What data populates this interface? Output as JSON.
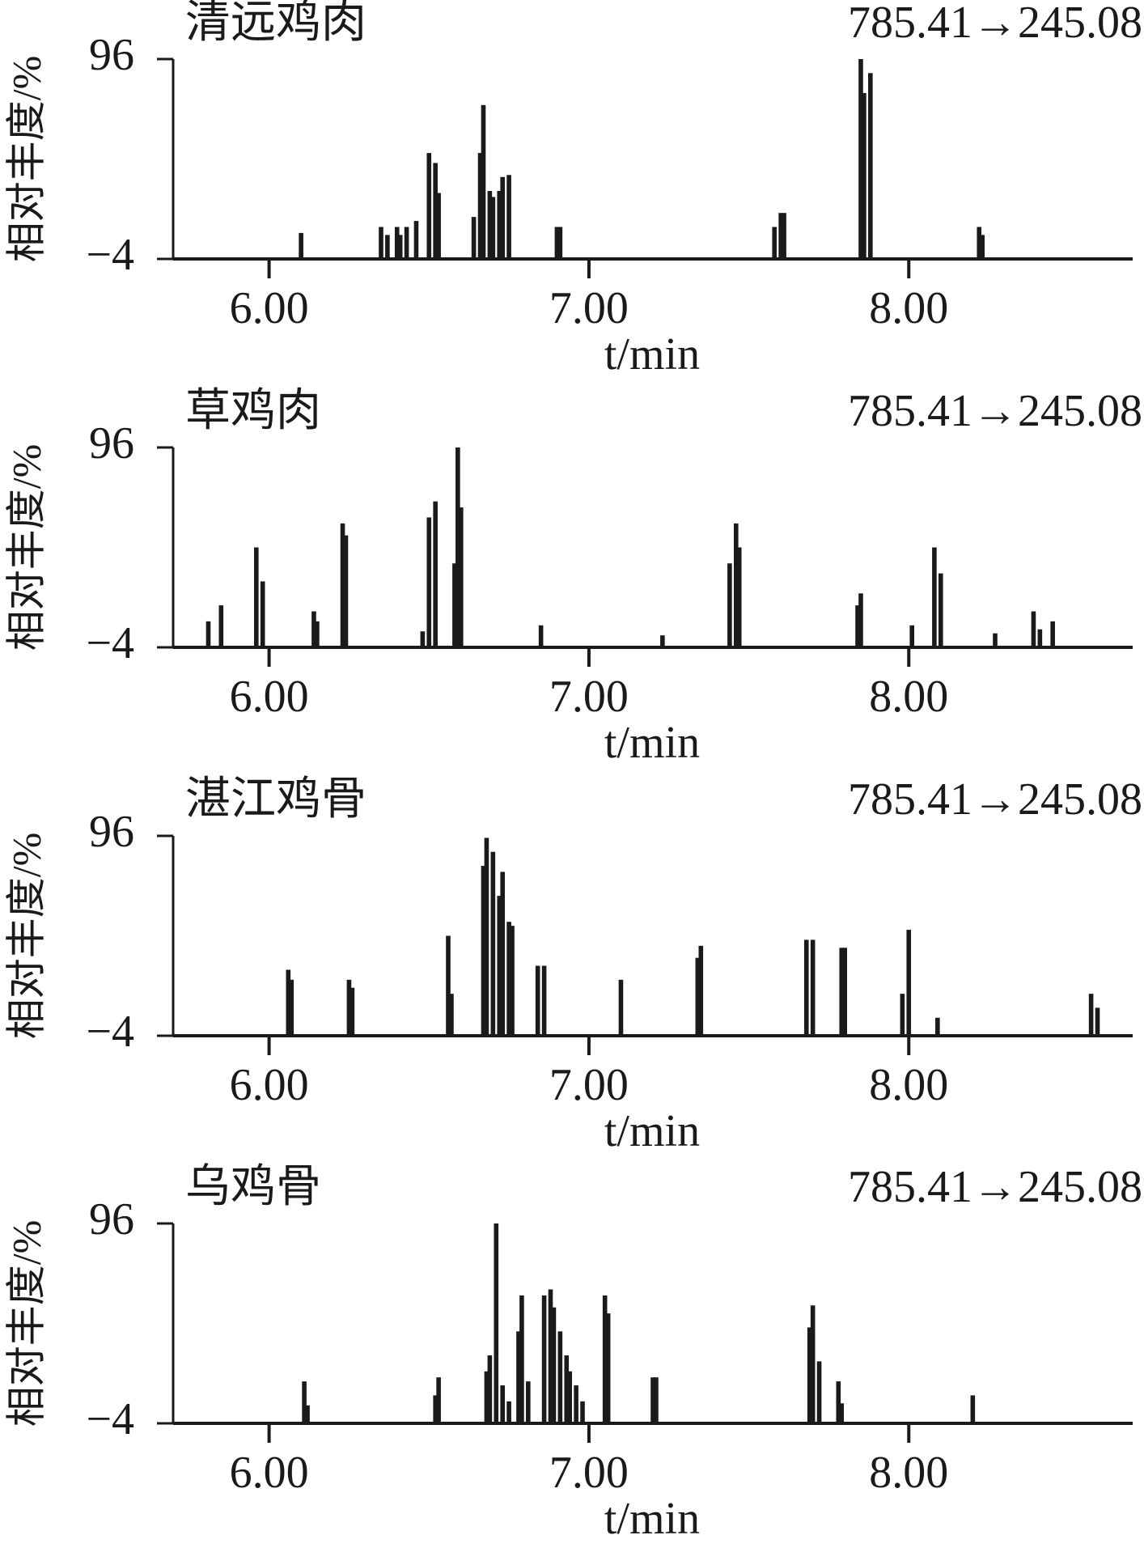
{
  "chart_data": [
    {
      "type": "bar",
      "title": "清远鸡肉",
      "annotation": "785.41→245.08",
      "ylabel": "相对丰度/%",
      "xlabel": "t/min",
      "color": "#1a1a1a",
      "xlim": [
        5.7,
        8.7
      ],
      "ylim": [
        -4,
        96
      ],
      "xticks": [
        {
          "value": 6,
          "label": "6.00"
        },
        {
          "value": 7,
          "label": "7.00"
        },
        {
          "value": 8,
          "label": "8.00"
        }
      ],
      "yticks": [
        {
          "value": -4,
          "label": "−4"
        },
        96
      ],
      "x": [
        6.1,
        6.35,
        6.37,
        6.4,
        6.41,
        6.43,
        6.46,
        6.5,
        6.52,
        6.53,
        6.64,
        6.66,
        6.67,
        6.69,
        6.7,
        6.72,
        6.73,
        6.75,
        6.9,
        6.91,
        7.58,
        7.6,
        7.61,
        7.85,
        7.86,
        7.88,
        8.22,
        8.23
      ],
      "values": [
        9,
        12,
        8,
        12,
        8,
        12,
        15,
        49,
        44,
        29,
        17,
        49,
        73,
        30,
        27,
        30,
        37,
        38,
        12,
        12,
        12,
        19,
        19,
        96,
        79,
        89,
        12,
        8
      ]
    },
    {
      "type": "bar",
      "title": "草鸡肉",
      "annotation": "785.41→245.08",
      "ylabel": "相对丰度/%",
      "xlabel": "t/min",
      "color": "#1a1a1a",
      "xlim": [
        5.7,
        8.7
      ],
      "ylim": [
        -4,
        96
      ],
      "xticks": [
        {
          "value": 6,
          "label": "6.00"
        },
        {
          "value": 7,
          "label": "7.00"
        },
        {
          "value": 8,
          "label": "8.00"
        }
      ],
      "yticks": [
        {
          "value": -4,
          "label": "−4"
        },
        96
      ],
      "x": [
        5.81,
        5.85,
        5.96,
        5.98,
        6.14,
        6.15,
        6.23,
        6.24,
        6.48,
        6.5,
        6.52,
        6.58,
        6.59,
        6.6,
        6.85,
        7.23,
        7.44,
        7.46,
        7.47,
        7.84,
        7.85,
        8.01,
        8.08,
        8.1,
        8.27,
        8.39,
        8.41,
        8.45
      ],
      "values": [
        9,
        17,
        46,
        29,
        14,
        9,
        58,
        52,
        4,
        61,
        69,
        38,
        96,
        66,
        7,
        2,
        38,
        58,
        46,
        17,
        23,
        7,
        46,
        33,
        3,
        14,
        5,
        9
      ]
    },
    {
      "type": "bar",
      "title": "湛江鸡骨",
      "annotation": "785.41→245.08",
      "ylabel": "相对丰度/%",
      "xlabel": "t/min",
      "color": "#1a1a1a",
      "xlim": [
        5.7,
        8.7
      ],
      "ylim": [
        -4,
        96
      ],
      "xticks": [
        {
          "value": 6,
          "label": "6.00"
        },
        {
          "value": 7,
          "label": "7.00"
        },
        {
          "value": 8,
          "label": "8.00"
        }
      ],
      "yticks": [
        {
          "value": -4,
          "label": "−4"
        },
        96
      ],
      "x": [
        6.06,
        6.07,
        6.25,
        6.26,
        6.56,
        6.57,
        6.67,
        6.68,
        6.7,
        6.72,
        6.73,
        6.75,
        6.76,
        6.84,
        6.86,
        7.1,
        7.34,
        7.35,
        7.68,
        7.7,
        7.79,
        7.8,
        7.98,
        8.0,
        8.09,
        8.57,
        8.59
      ],
      "values": [
        29,
        24,
        24,
        20,
        46,
        17,
        81,
        95,
        88,
        66,
        78,
        53,
        51,
        31,
        31,
        24,
        35,
        41,
        44,
        44,
        40,
        40,
        17,
        49,
        5,
        17,
        10
      ]
    },
    {
      "type": "bar",
      "title": "乌鸡骨",
      "annotation": "785.41→245.08",
      "ylabel": "相对丰度/%",
      "xlabel": "t/min",
      "color": "#1a1a1a",
      "xlim": [
        5.7,
        8.7
      ],
      "ylim": [
        -4,
        96
      ],
      "xticks": [
        {
          "value": 6,
          "label": "6.00"
        },
        {
          "value": 7,
          "label": "7.00"
        },
        {
          "value": 8,
          "label": "8.00"
        }
      ],
      "yticks": [
        {
          "value": -4,
          "label": "−4"
        },
        96
      ],
      "x": [
        6.11,
        6.12,
        6.52,
        6.53,
        6.68,
        6.69,
        6.71,
        6.73,
        6.75,
        6.78,
        6.79,
        6.81,
        6.86,
        6.88,
        6.89,
        6.91,
        6.93,
        6.94,
        6.96,
        6.98,
        7.05,
        7.06,
        7.2,
        7.21,
        7.69,
        7.7,
        7.72,
        7.78,
        7.79,
        8.2
      ],
      "values": [
        17,
        5,
        10,
        19,
        22,
        30,
        96,
        15,
        7,
        42,
        60,
        17,
        60,
        63,
        54,
        42,
        30,
        22,
        15,
        7,
        60,
        51,
        19,
        19,
        44,
        55,
        27,
        17,
        6,
        10
      ]
    }
  ]
}
